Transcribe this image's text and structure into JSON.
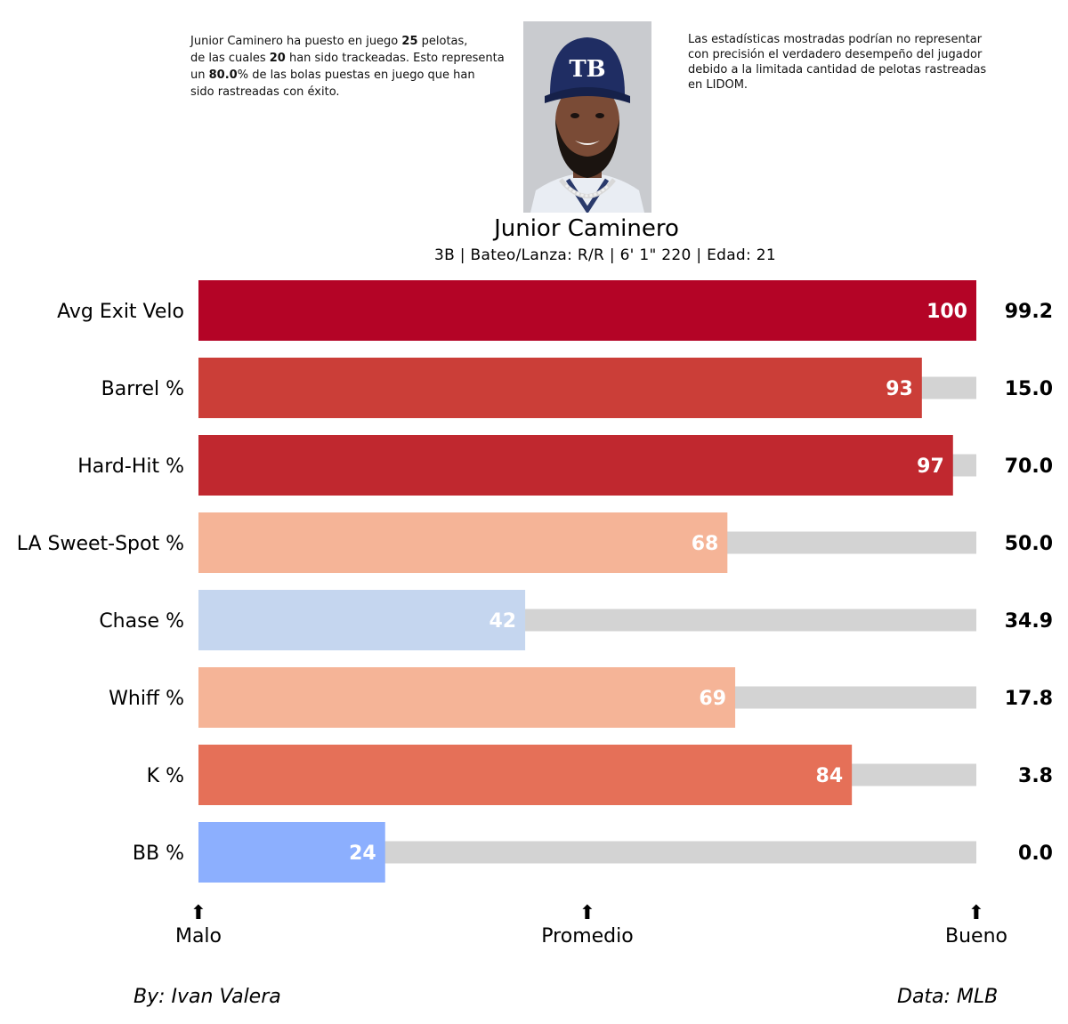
{
  "notes": {
    "left": {
      "part1": "Junior Caminero ha puesto en juego ",
      "balls_in_play": "25",
      "part2": " pelotas,",
      "part3": "de las cuales ",
      "tracked": "20",
      "part4": " han sido trackeadas. Esto representa",
      "part5": "un ",
      "pct": "80.0",
      "part6": "% de las bolas puestas en juego que han",
      "part7": "sido rastreadas con éxito."
    },
    "right": {
      "line1": "Las estadísticas mostradas podrían no representar",
      "line2": "con precisión el verdadero desempeño del jugador",
      "line3": "debido a la limitada cantidad de pelotas rastreadas",
      "line4": "en LIDOM."
    }
  },
  "player": {
    "name": "Junior Caminero",
    "info": "3B | Bateo/Lanza: R/R | 6' 1\" 220 | Edad: 21",
    "cap_logo": "TB"
  },
  "chart_data": {
    "type": "bar",
    "orientation": "horizontal",
    "xlim": [
      0,
      100
    ],
    "categories": [
      "Avg Exit Velo",
      "Barrel %",
      "Hard-Hit %",
      "LA Sweet-Spot %",
      "Chase %",
      "Whiff %",
      "K %",
      "BB %"
    ],
    "percentiles": [
      100,
      93,
      97,
      68,
      42,
      69,
      84,
      24
    ],
    "stat_values": [
      "99.2",
      "15.0",
      "70.0",
      "50.0",
      "34.9",
      "17.8",
      "3.8",
      "0.0"
    ],
    "bar_colors": [
      "#b40426",
      "#cb3e38",
      "#c0282f",
      "#f5b497",
      "#c5d6ef",
      "#f5b497",
      "#e57058",
      "#8caffe"
    ],
    "track_color": "#d3d3d3",
    "scale_labels": [
      {
        "pos": 0,
        "label": "Malo",
        "arrow": "⬆"
      },
      {
        "pos": 50,
        "label": "Promedio",
        "arrow": "⬆"
      },
      {
        "pos": 100,
        "label": "Bueno",
        "arrow": "⬆"
      }
    ]
  },
  "credits": {
    "author": "By: Ivan Valera",
    "source": "Data: MLB"
  }
}
